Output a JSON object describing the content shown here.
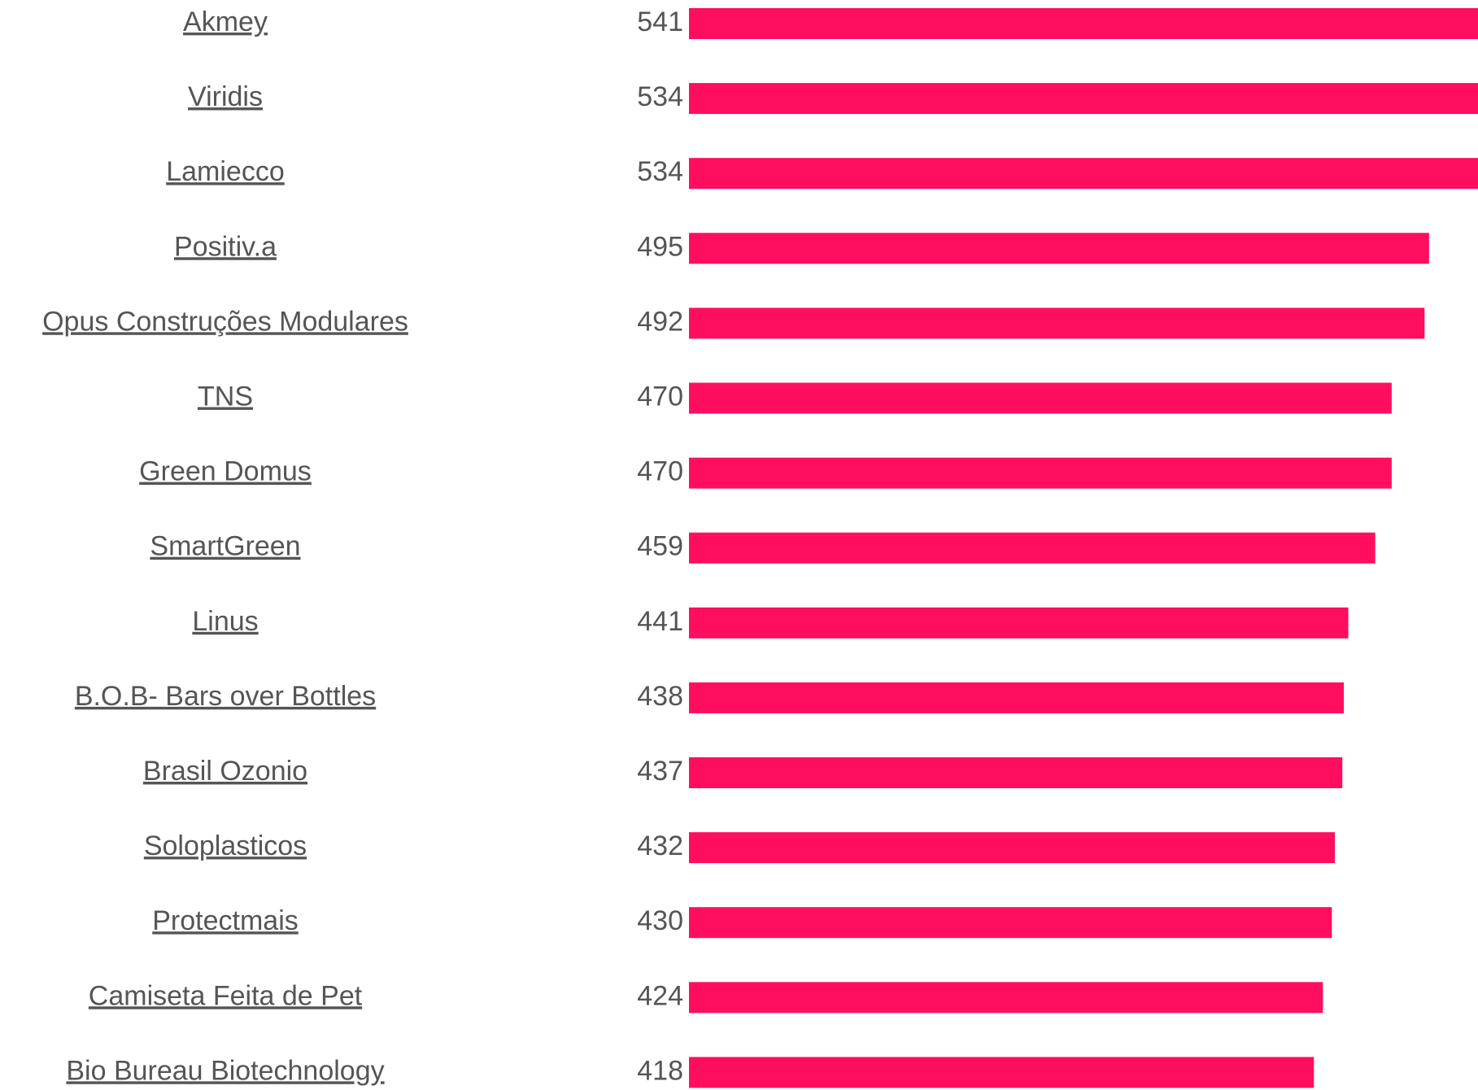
{
  "chart_data": {
    "type": "bar",
    "orientation": "horizontal",
    "categories": [
      "Akmey",
      "Viridis",
      "Lamiecco",
      "Positiv.a",
      "Opus Construções Modulares",
      "TNS",
      "Green Domus",
      "SmartGreen",
      "Linus",
      "B.O.B- Bars over Bottles",
      "Brasil Ozonio",
      "Soloplasticos",
      "Protectmais",
      "Camiseta Feita de Pet",
      "Bio Bureau Biotechnology"
    ],
    "values": [
      541,
      534,
      534,
      495,
      492,
      470,
      470,
      459,
      441,
      438,
      437,
      432,
      430,
      424,
      418
    ],
    "color": "#ff0d5f"
  }
}
